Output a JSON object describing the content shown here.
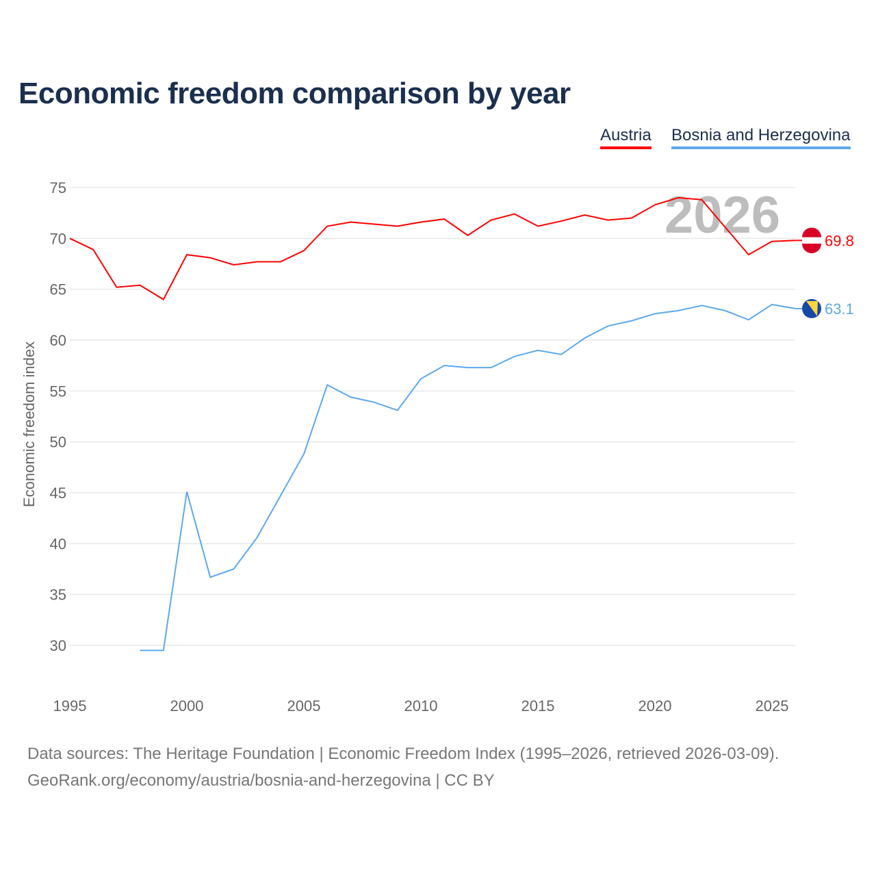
{
  "chart_data": {
    "type": "line",
    "title": "Economic freedom comparison by year",
    "xlabel": "",
    "ylabel": "Economic freedom index",
    "xlim": [
      1995,
      2026
    ],
    "ylim": [
      27,
      75
    ],
    "xticks": [
      1995,
      2000,
      2005,
      2010,
      2015,
      2020,
      2025
    ],
    "yticks": [
      30,
      35,
      40,
      45,
      50,
      55,
      60,
      65,
      70,
      75
    ],
    "grid": true,
    "legend_position": "top-right",
    "watermark_year": "2026",
    "series": [
      {
        "name": "Austria",
        "color": "#ff0000",
        "end_label": "69.8",
        "flag": "austria-flag",
        "x": [
          1995,
          1996,
          1997,
          1998,
          1999,
          2000,
          2001,
          2002,
          2003,
          2004,
          2005,
          2006,
          2007,
          2008,
          2009,
          2010,
          2011,
          2012,
          2013,
          2014,
          2015,
          2016,
          2017,
          2018,
          2019,
          2020,
          2021,
          2022,
          2023,
          2024,
          2025,
          2026
        ],
        "y": [
          70.0,
          68.9,
          65.2,
          65.4,
          64.0,
          68.4,
          68.1,
          67.4,
          67.7,
          67.7,
          68.8,
          71.2,
          71.6,
          71.4,
          71.2,
          71.6,
          71.9,
          70.3,
          71.8,
          72.4,
          71.2,
          71.7,
          72.3,
          71.8,
          72.0,
          73.3,
          74.0,
          73.8,
          71.1,
          68.4,
          69.7,
          69.8
        ]
      },
      {
        "name": "Bosnia and Herzegovina",
        "color": "#5ca8ee",
        "end_label": "63.1",
        "flag": "bosnia-flag",
        "x": [
          1998,
          1999,
          2000,
          2001,
          2002,
          2003,
          2004,
          2005,
          2006,
          2007,
          2008,
          2009,
          2010,
          2011,
          2012,
          2013,
          2014,
          2015,
          2016,
          2017,
          2018,
          2019,
          2020,
          2021,
          2022,
          2023,
          2024,
          2025,
          2026
        ],
        "y": [
          29.5,
          29.5,
          45.1,
          36.7,
          37.5,
          40.6,
          44.7,
          48.8,
          55.6,
          54.4,
          53.9,
          53.1,
          56.2,
          57.5,
          57.3,
          57.3,
          58.4,
          59.0,
          58.6,
          60.2,
          61.4,
          61.9,
          62.6,
          62.9,
          63.4,
          62.9,
          62.0,
          63.5,
          63.1
        ]
      }
    ]
  },
  "footer": {
    "sources": "Data sources: The Heritage Foundation | Economic Freedom Index (1995–2026, retrieved 2026-03-09).",
    "credit": "GeoRank.org/economy/austria/bosnia-and-herzegovina | CC BY"
  }
}
